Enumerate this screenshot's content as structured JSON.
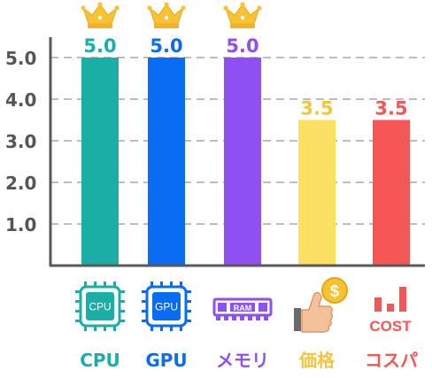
{
  "chart_data": {
    "type": "bar",
    "title": "",
    "xlabel": "",
    "ylabel": "",
    "ylim": [
      0,
      5
    ],
    "grid": true,
    "yticks": [
      "1.0",
      "2.0",
      "3.0",
      "4.0",
      "5.0"
    ],
    "categories": [
      "CPU",
      "GPU",
      "メモリ",
      "価格",
      "コスパ"
    ],
    "values": [
      5.0,
      5.0,
      5.0,
      3.5,
      3.5
    ],
    "value_labels": [
      "5.0",
      "5.0",
      "5.0",
      "3.5",
      "3.5"
    ],
    "crowned": [
      true,
      true,
      true,
      false,
      false
    ],
    "colors": [
      "#1aaea6",
      "#0a6cf2",
      "#8e50f2",
      "#fce062",
      "#f65756"
    ],
    "label_colors": [
      "#1aaea6",
      "#0a6cf2",
      "#8e50f2",
      "#f4c640",
      "#f65756"
    ],
    "icons": [
      "cpu-chip-icon",
      "gpu-chip-icon",
      "ram-module-icon",
      "thumbs-up-coin-icon",
      "cost-bars-icon"
    ],
    "icon_texts": {
      "cpu": "CPU",
      "gpu": "GPU",
      "ram": "RAM",
      "coin": "$",
      "cost": "COST"
    }
  }
}
